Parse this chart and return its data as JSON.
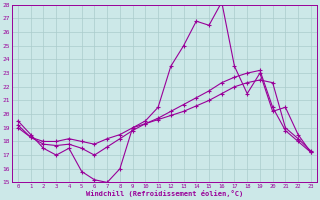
{
  "xlabel": "Windchill (Refroidissement éolien,°C)",
  "x": [
    0,
    1,
    2,
    3,
    4,
    5,
    6,
    7,
    8,
    9,
    10,
    11,
    12,
    13,
    14,
    15,
    16,
    17,
    18,
    19,
    20,
    21,
    22,
    23
  ],
  "line1": [
    19.5,
    18.5,
    17.5,
    17.0,
    17.5,
    15.8,
    15.2,
    15.0,
    16.0,
    19.0,
    19.5,
    20.5,
    23.5,
    25.0,
    26.8,
    26.5,
    28.2,
    23.5,
    21.5,
    23.0,
    20.2,
    20.5,
    18.5,
    17.2
  ],
  "line2": [
    19.2,
    18.3,
    18.0,
    18.0,
    18.2,
    18.0,
    17.8,
    18.2,
    18.5,
    19.0,
    19.3,
    19.6,
    19.9,
    20.2,
    20.6,
    21.0,
    21.5,
    22.0,
    22.3,
    22.5,
    22.3,
    19.0,
    18.2,
    17.3
  ],
  "line3": [
    19.0,
    18.3,
    17.8,
    17.7,
    17.8,
    17.5,
    17.0,
    17.6,
    18.2,
    18.8,
    19.3,
    19.7,
    20.2,
    20.7,
    21.2,
    21.7,
    22.3,
    22.7,
    23.0,
    23.2,
    20.5,
    18.8,
    18.0,
    17.2
  ],
  "line_color": "#990099",
  "bg_color": "#cce8e8",
  "grid_color": "#aacccc",
  "ylim": [
    15,
    28
  ],
  "yticks": [
    15,
    16,
    17,
    18,
    19,
    20,
    21,
    22,
    23,
    24,
    25,
    26,
    27,
    28
  ],
  "xticks": [
    0,
    1,
    2,
    3,
    4,
    5,
    6,
    7,
    8,
    9,
    10,
    11,
    12,
    13,
    14,
    15,
    16,
    17,
    18,
    19,
    20,
    21,
    22,
    23
  ]
}
